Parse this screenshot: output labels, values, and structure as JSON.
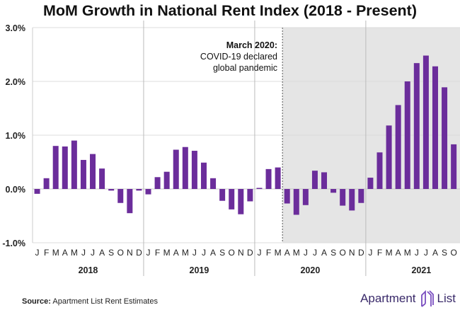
{
  "chart_data": {
    "type": "bar",
    "title": "MoM Growth in National Rent Index (2018 - Present)",
    "xlabel": "",
    "ylabel": "",
    "ylim": [
      -1.0,
      3.0
    ],
    "yticks": [
      "3.0%",
      "2.0%",
      "1.0%",
      "0.0%",
      "-1.0%"
    ],
    "ytick_values": [
      3,
      2,
      1,
      0,
      -1
    ],
    "grid": true,
    "bar_color": "#6b2d9b",
    "shade_color": "#e5e5e5",
    "years": [
      {
        "label": "2018",
        "months": [
          "J",
          "F",
          "M",
          "A",
          "M",
          "J",
          "J",
          "A",
          "S",
          "O",
          "N",
          "D"
        ],
        "values": [
          -0.09,
          0.2,
          0.8,
          0.79,
          0.9,
          0.54,
          0.65,
          0.38,
          -0.03,
          -0.26,
          -0.45,
          -0.03
        ]
      },
      {
        "label": "2019",
        "months": [
          "J",
          "F",
          "M",
          "A",
          "M",
          "J",
          "J",
          "A",
          "S",
          "O",
          "N",
          "D"
        ],
        "values": [
          -0.1,
          0.22,
          0.32,
          0.73,
          0.78,
          0.71,
          0.49,
          0.2,
          -0.22,
          -0.38,
          -0.47,
          -0.23
        ]
      },
      {
        "label": "2020",
        "months": [
          "J",
          "F",
          "M",
          "A",
          "M",
          "J",
          "J",
          "A",
          "S",
          "O",
          "N",
          "D"
        ],
        "values": [
          0.02,
          0.37,
          0.4,
          -0.27,
          -0.48,
          -0.3,
          0.34,
          0.31,
          -0.07,
          -0.31,
          -0.4,
          -0.26
        ]
      },
      {
        "label": "2021",
        "months": [
          "J",
          "F",
          "M",
          "A",
          "M",
          "J",
          "J",
          "A",
          "S",
          "O"
        ],
        "values": [
          0.21,
          0.68,
          1.18,
          1.56,
          2.0,
          2.34,
          2.48,
          2.28,
          1.89,
          0.83
        ]
      }
    ],
    "annotation": {
      "title": "March 2020:",
      "line1": "COVID-19 declared",
      "line2": "global pandemic"
    }
  },
  "footer": {
    "source_label": "Source:",
    "source_text": "Apartment List Rent Estimates"
  },
  "logo": {
    "left": "Apartment",
    "right": "List"
  }
}
